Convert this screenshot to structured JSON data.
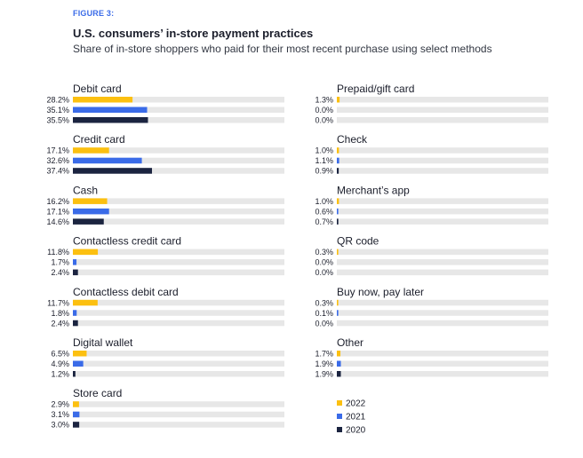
{
  "figure_label": "FIGURE 3:",
  "title": "U.S. consumers’ in-store payment practices",
  "subtitle": "Share of in-store shoppers who paid for their most recent purchase using select methods",
  "colors": {
    "2022": "#fcc010",
    "2021": "#3a6be8",
    "2020": "#1b2440",
    "track": "#e7e7e7"
  },
  "chart_data": {
    "type": "bar",
    "orientation": "horizontal",
    "title": "U.S. consumers’ in-store payment practices",
    "subtitle": "Share of in-store shoppers who paid for their most recent purchase using select methods",
    "unit": "%",
    "xlim": [
      0,
      100
    ],
    "series_names": [
      "2022",
      "2021",
      "2020"
    ],
    "categories": [
      {
        "label": "Debit card",
        "values": [
          28.2,
          35.1,
          35.5
        ],
        "labels": [
          "28.2%",
          "35.1%",
          "35.5%"
        ]
      },
      {
        "label": "Credit card",
        "values": [
          17.1,
          32.6,
          37.4
        ],
        "labels": [
          "17.1%",
          "32.6%",
          "37.4%"
        ]
      },
      {
        "label": "Cash",
        "values": [
          16.2,
          17.1,
          14.6
        ],
        "labels": [
          "16.2%",
          "17.1%",
          "14.6%"
        ]
      },
      {
        "label": "Contactless credit card",
        "values": [
          11.8,
          1.7,
          2.4
        ],
        "labels": [
          "11.8%",
          "1.7%",
          "2.4%"
        ]
      },
      {
        "label": "Contactless debit card",
        "values": [
          11.7,
          1.8,
          2.4
        ],
        "labels": [
          "11.7%",
          "1.8%",
          "2.4%"
        ]
      },
      {
        "label": "Digital wallet",
        "values": [
          6.5,
          4.9,
          1.2
        ],
        "labels": [
          "6.5%",
          "4.9%",
          "1.2%"
        ]
      },
      {
        "label": "Store card",
        "values": [
          2.9,
          3.1,
          3.0
        ],
        "labels": [
          "2.9%",
          "3.1%",
          "3.0%"
        ]
      },
      {
        "label": "Prepaid/gift card",
        "values": [
          1.3,
          0.0,
          0.0
        ],
        "labels": [
          "1.3%",
          "0.0%",
          "0.0%"
        ]
      },
      {
        "label": "Check",
        "values": [
          1.0,
          1.1,
          0.9
        ],
        "labels": [
          "1.0%",
          "1.1%",
          "0.9%"
        ]
      },
      {
        "label": "Merchant’s app",
        "values": [
          1.0,
          0.6,
          0.7
        ],
        "labels": [
          "1.0%",
          "0.6%",
          "0.7%"
        ]
      },
      {
        "label": "QR code",
        "values": [
          0.3,
          0.0,
          0.0
        ],
        "labels": [
          "0.3%",
          "0.0%",
          "0.0%"
        ]
      },
      {
        "label": "Buy now, pay later",
        "values": [
          0.3,
          0.1,
          0.0
        ],
        "labels": [
          "0.3%",
          "0.1%",
          "0.0%"
        ]
      },
      {
        "label": "Other",
        "values": [
          1.7,
          1.9,
          1.9
        ],
        "labels": [
          "1.7%",
          "1.9%",
          "1.9%"
        ]
      }
    ],
    "legend": [
      "2022",
      "2021",
      "2020"
    ],
    "legend_position": "bottom-right"
  }
}
